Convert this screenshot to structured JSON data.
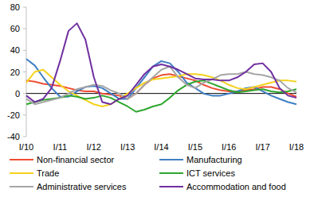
{
  "chart_data": {
    "type": "line",
    "categories": [
      "I/10",
      null,
      null,
      null,
      "I/11",
      null,
      null,
      null,
      "I/12",
      null,
      null,
      null,
      "I/13",
      null,
      null,
      null,
      "I/14",
      null,
      null,
      null,
      "I/15",
      null,
      null,
      null,
      "I/16",
      null,
      null,
      null,
      "I/17",
      null,
      null,
      null,
      "I/18"
    ],
    "ylim": [
      -40,
      80
    ],
    "yticks": [
      -40,
      -20,
      0,
      20,
      40,
      60,
      80
    ],
    "grid": false,
    "legend": "bottom",
    "series": [
      {
        "name": "Non-financial sector",
        "color": "#ee4e33",
        "values": [
          12,
          11,
          9,
          8,
          7,
          5,
          3,
          2,
          2,
          0,
          -1,
          -2,
          -5,
          0,
          8,
          14,
          17,
          18,
          16,
          14,
          12,
          8,
          5,
          3,
          2,
          2,
          3,
          4,
          6,
          6,
          4,
          0,
          -3
        ]
      },
      {
        "name": "Manufacturing",
        "color": "#3f7fc4",
        "values": [
          32,
          26,
          15,
          5,
          -3,
          -3,
          2,
          6,
          7,
          5,
          0,
          -5,
          -5,
          5,
          15,
          25,
          30,
          28,
          20,
          10,
          5,
          0,
          -2,
          -2,
          0,
          2,
          5,
          6,
          2,
          -2,
          -5,
          -8,
          -10
        ]
      },
      {
        "name": "Trade",
        "color": "#f5d21e",
        "values": [
          10,
          20,
          22,
          15,
          8,
          2,
          -2,
          -6,
          -10,
          -12,
          -10,
          -5,
          0,
          5,
          10,
          13,
          14,
          15,
          16,
          18,
          18,
          17,
          15,
          12,
          8,
          5,
          4,
          6,
          8,
          10,
          12,
          12,
          11
        ]
      },
      {
        "name": "ICT services",
        "color": "#2ea62e",
        "values": [
          -10,
          -8,
          -6,
          -5,
          -4,
          -2,
          -3,
          -5,
          -4,
          -2,
          -4,
          -8,
          -12,
          -17,
          -15,
          -12,
          -10,
          -4,
          3,
          8,
          11,
          12,
          9,
          6,
          3,
          1,
          2,
          3,
          4,
          2,
          1,
          2,
          4
        ]
      },
      {
        "name": "Administrative services",
        "color": "#a6a6a6",
        "values": [
          -5,
          -10,
          -8,
          -6,
          -4,
          0,
          4,
          6,
          8,
          7,
          3,
          0,
          -5,
          0,
          8,
          15,
          22,
          25,
          15,
          8,
          5,
          10,
          13,
          17,
          18,
          18,
          20,
          18,
          17,
          15,
          12,
          5,
          1
        ]
      },
      {
        "name": "Accommodation and food",
        "color": "#7030a0",
        "values": [
          -2,
          -8,
          -5,
          5,
          30,
          58,
          65,
          50,
          15,
          -8,
          -10,
          -5,
          -2,
          8,
          18,
          25,
          27,
          25,
          22,
          18,
          14,
          13,
          13,
          12,
          12,
          15,
          20,
          27,
          28,
          20,
          5,
          -2,
          -4
        ]
      }
    ]
  }
}
